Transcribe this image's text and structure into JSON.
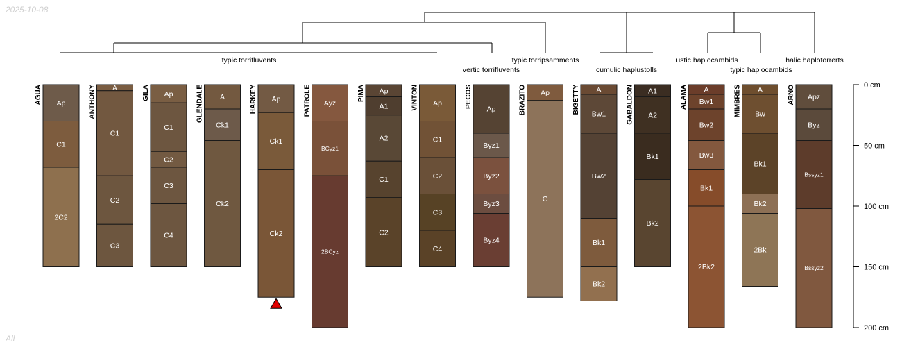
{
  "date": "2025-10-08",
  "footer": "All",
  "colors": {
    "line": "#000000",
    "horizon_border": "#1a1a1a",
    "label": "#ffffff",
    "marker": "#e00000"
  },
  "depth_axis": {
    "unit": "cm",
    "max": 200,
    "ticks": [
      0,
      50,
      100,
      150,
      200
    ],
    "labels": [
      "0 cm",
      "50 cm",
      "100 cm",
      "150 cm",
      "200 cm"
    ]
  },
  "taxa": [
    {
      "name": "typic torrifluvents"
    },
    {
      "name": "vertic torrifluvents"
    },
    {
      "name": "typic torripsamments"
    },
    {
      "name": "cumulic haplustolls"
    },
    {
      "name": "ustic haplocambids"
    },
    {
      "name": "typic haplocambids"
    },
    {
      "name": "halic haplotorrerts"
    }
  ],
  "profiles": [
    {
      "name": "AGUA",
      "horizons": [
        {
          "name": "Ap",
          "top": 0,
          "bottom": 30,
          "color": "#6e5b4a"
        },
        {
          "name": "C1",
          "top": 30,
          "bottom": 68,
          "color": "#7d5c3e"
        },
        {
          "name": "2C2",
          "top": 68,
          "bottom": 150,
          "color": "#8e704e"
        }
      ]
    },
    {
      "name": "ANTHONY",
      "horizons": [
        {
          "name": "A",
          "top": 0,
          "bottom": 5,
          "color": "#7a5d42"
        },
        {
          "name": "C1",
          "top": 5,
          "bottom": 75,
          "color": "#725840"
        },
        {
          "name": "C2",
          "top": 75,
          "bottom": 115,
          "color": "#6d563f"
        },
        {
          "name": "C3",
          "top": 115,
          "bottom": 150,
          "color": "#6d563f"
        }
      ]
    },
    {
      "name": "GILA",
      "horizons": [
        {
          "name": "Ap",
          "top": 0,
          "bottom": 15,
          "color": "#7a5e43"
        },
        {
          "name": "C1",
          "top": 15,
          "bottom": 55,
          "color": "#6d5640"
        },
        {
          "name": "C2",
          "top": 55,
          "bottom": 68,
          "color": "#735a42"
        },
        {
          "name": "C3",
          "top": 68,
          "bottom": 98,
          "color": "#6d5640"
        },
        {
          "name": "C4",
          "top": 98,
          "bottom": 150,
          "color": "#6d5640"
        }
      ]
    },
    {
      "name": "GLENDALE",
      "horizons": [
        {
          "name": "A",
          "top": 0,
          "bottom": 20,
          "color": "#735940"
        },
        {
          "name": "Ck1",
          "top": 20,
          "bottom": 46,
          "color": "#6d5a4a"
        },
        {
          "name": "Ck2",
          "top": 46,
          "bottom": 150,
          "color": "#6f5840"
        }
      ]
    },
    {
      "name": "HARKEY",
      "hasMarker": true,
      "horizons": [
        {
          "name": "Ap",
          "top": 0,
          "bottom": 23,
          "color": "#735a44"
        },
        {
          "name": "Ck1",
          "top": 23,
          "bottom": 70,
          "color": "#7a5a3a"
        },
        {
          "name": "Ck2",
          "top": 70,
          "bottom": 175,
          "color": "#7a5637"
        }
      ]
    },
    {
      "name": "PATROLE",
      "horizons": [
        {
          "name": "Ayz",
          "top": 0,
          "bottom": 30,
          "color": "#85583f"
        },
        {
          "name": "BCyz1",
          "top": 30,
          "bottom": 75,
          "color": "#7a5139"
        },
        {
          "name": "2BCyz",
          "top": 75,
          "bottom": 200,
          "color": "#673b30"
        }
      ]
    },
    {
      "name": "PIMA",
      "horizons": [
        {
          "name": "Ap",
          "top": 0,
          "bottom": 10,
          "color": "#5a4534"
        },
        {
          "name": "A1",
          "top": 10,
          "bottom": 25,
          "color": "#4f3e2f"
        },
        {
          "name": "A2",
          "top": 25,
          "bottom": 63,
          "color": "#594836"
        },
        {
          "name": "C1",
          "top": 63,
          "bottom": 93,
          "color": "#57432e"
        },
        {
          "name": "C2",
          "top": 93,
          "bottom": 150,
          "color": "#5a4329"
        }
      ]
    },
    {
      "name": "VINTON",
      "horizons": [
        {
          "name": "Ap",
          "top": 0,
          "bottom": 30,
          "color": "#7a5a38"
        },
        {
          "name": "C1",
          "top": 30,
          "bottom": 60,
          "color": "#715236"
        },
        {
          "name": "C2",
          "top": 60,
          "bottom": 90,
          "color": "#6a5038"
        },
        {
          "name": "C3",
          "top": 90,
          "bottom": 120,
          "color": "#574225"
        },
        {
          "name": "C4",
          "top": 120,
          "bottom": 150,
          "color": "#5a4227"
        }
      ]
    },
    {
      "name": "PECOS",
      "horizons": [
        {
          "name": "Ap",
          "top": 0,
          "bottom": 40,
          "color": "#554333"
        },
        {
          "name": "Byz1",
          "top": 40,
          "bottom": 60,
          "color": "#6b584a"
        },
        {
          "name": "Byz2",
          "top": 60,
          "bottom": 90,
          "color": "#7b513e"
        },
        {
          "name": "Byz3",
          "top": 90,
          "bottom": 106,
          "color": "#6c4d40"
        },
        {
          "name": "Byz4",
          "top": 106,
          "bottom": 150,
          "color": "#6a3e33"
        }
      ]
    },
    {
      "name": "BRAZITO",
      "horizons": [
        {
          "name": "Ap",
          "top": 0,
          "bottom": 13,
          "color": "#7f5b3e"
        },
        {
          "name": "C",
          "top": 13,
          "bottom": 175,
          "color": "#8d735a"
        }
      ]
    },
    {
      "name": "BIGETTY",
      "horizons": [
        {
          "name": "A",
          "top": 0,
          "bottom": 8,
          "color": "#6a4a33"
        },
        {
          "name": "Bw1",
          "top": 8,
          "bottom": 40,
          "color": "#5d4837"
        },
        {
          "name": "Bw2",
          "top": 40,
          "bottom": 110,
          "color": "#544234"
        },
        {
          "name": "Bk1",
          "top": 110,
          "bottom": 150,
          "color": "#7e5b3d"
        },
        {
          "name": "Bk2",
          "top": 150,
          "bottom": 178,
          "color": "#92704f"
        }
      ]
    },
    {
      "name": "GABALDON",
      "horizons": [
        {
          "name": "A1",
          "top": 0,
          "bottom": 10,
          "color": "#3b2d22"
        },
        {
          "name": "A2",
          "top": 10,
          "bottom": 40,
          "color": "#3f3022"
        },
        {
          "name": "Bk1",
          "top": 40,
          "bottom": 78,
          "color": "#3a2c1f"
        },
        {
          "name": "Bk2",
          "top": 78,
          "bottom": 150,
          "color": "#594530"
        }
      ]
    },
    {
      "name": "ALAMA",
      "horizons": [
        {
          "name": "A",
          "top": 0,
          "bottom": 8,
          "color": "#6b3d2a"
        },
        {
          "name": "Bw1",
          "top": 8,
          "bottom": 20,
          "color": "#6d432c"
        },
        {
          "name": "Bw2",
          "top": 20,
          "bottom": 46,
          "color": "#6d432c"
        },
        {
          "name": "Bw3",
          "top": 46,
          "bottom": 70,
          "color": "#83583e"
        },
        {
          "name": "Bk1",
          "top": 70,
          "bottom": 100,
          "color": "#864c2a"
        },
        {
          "name": "2Bk2",
          "top": 100,
          "bottom": 200,
          "color": "#8c5433"
        }
      ]
    },
    {
      "name": "MIMBRES",
      "horizons": [
        {
          "name": "A",
          "top": 0,
          "bottom": 8,
          "color": "#6e4e2e"
        },
        {
          "name": "Bw",
          "top": 8,
          "bottom": 40,
          "color": "#6e4f30"
        },
        {
          "name": "Bk1",
          "top": 40,
          "bottom": 90,
          "color": "#5c4328"
        },
        {
          "name": "Bk2",
          "top": 90,
          "bottom": 106,
          "color": "#8d7055"
        },
        {
          "name": "2Bk",
          "top": 106,
          "bottom": 166,
          "color": "#8e7556"
        }
      ]
    },
    {
      "name": "ARNO",
      "horizons": [
        {
          "name": "Apz",
          "top": 0,
          "bottom": 20,
          "color": "#604d3c"
        },
        {
          "name": "Byz",
          "top": 20,
          "bottom": 46,
          "color": "#5b4a3b"
        },
        {
          "name": "Bssyz1",
          "top": 46,
          "bottom": 102,
          "color": "#5d3c2b"
        },
        {
          "name": "Bssyz2",
          "top": 102,
          "bottom": 200,
          "color": "#80583f"
        }
      ]
    }
  ]
}
